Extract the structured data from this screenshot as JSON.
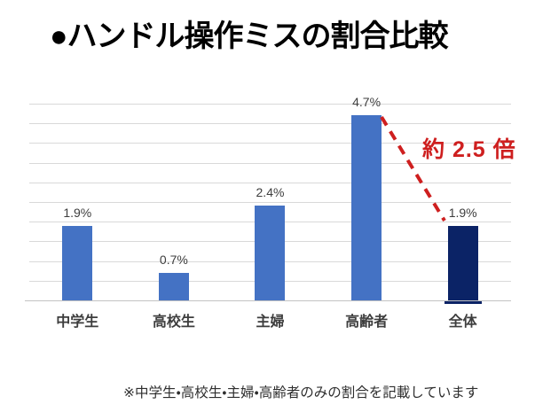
{
  "title": "●ハンドル操作ミスの割合比較",
  "footnote": "※中学生・高校生・主婦・高齢者のみの割合を記載しています",
  "colors": {
    "bar_blue": "#4472C4",
    "bar_navy": "#0B2366",
    "annotation_red": "#CE1F1F",
    "gridline": "#D9D9D9",
    "axis_line": "#C3C3C3",
    "label_text": "#3D3D3D"
  },
  "chart_data": {
    "type": "bar",
    "title": "ハンドル操作ミスの割合比較",
    "categories": [
      "中学生",
      "高校生",
      "主婦",
      "高齢者",
      "全体"
    ],
    "values": [
      1.9,
      0.7,
      2.4,
      4.7,
      1.9
    ],
    "value_labels": [
      "1.9%",
      "0.7%",
      "2.4%",
      "4.7%",
      "1.9%"
    ],
    "bar_colors": [
      "#4472C4",
      "#4472C4",
      "#4472C4",
      "#4472C4",
      "#0B2366"
    ],
    "xlabel": "",
    "ylabel": "",
    "ylim": [
      0,
      5
    ],
    "grid_step": 0.5,
    "grid": true,
    "legend": "none",
    "annotation": {
      "text": "約 2.5 倍",
      "from_category": "高齢者",
      "to_category": "全体",
      "style": "red-dashed-line"
    }
  }
}
